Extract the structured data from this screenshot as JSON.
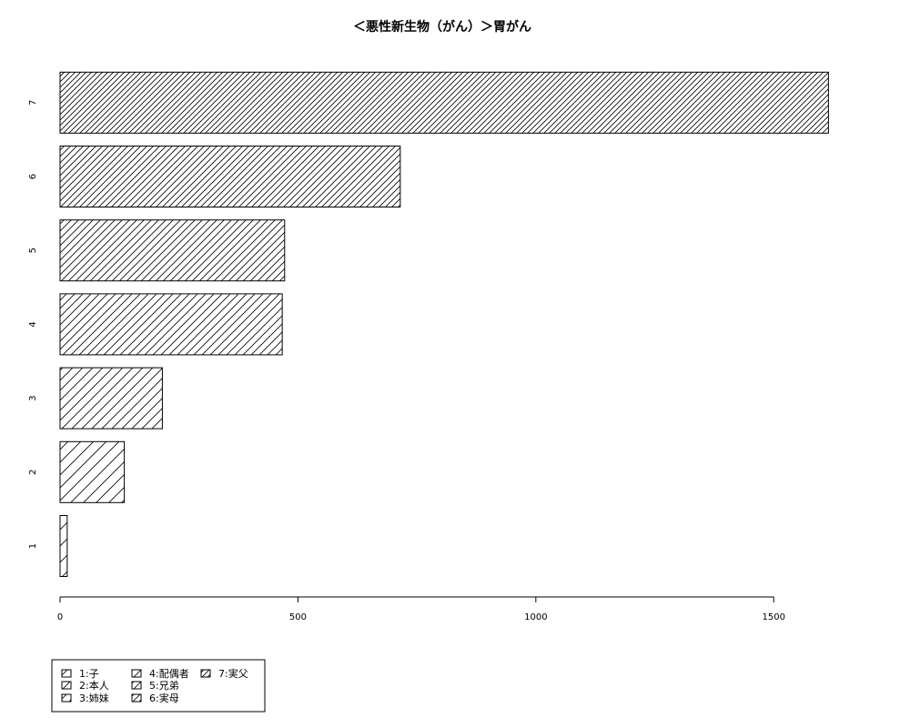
{
  "chart_data": {
    "type": "bar",
    "orientation": "horizontal",
    "title": "＜悪性新生物（がん）＞胃がん",
    "xlabel": "",
    "ylabel": "",
    "categories": [
      "1",
      "2",
      "3",
      "4",
      "5",
      "6",
      "7"
    ],
    "values": [
      15,
      135,
      215,
      467,
      472,
      715,
      1615
    ],
    "xlim": [
      0,
      1620
    ],
    "x_ticks": [
      "0",
      "500",
      "1000",
      "1500"
    ],
    "grid": false,
    "bar_fill": "hatched",
    "legend": {
      "position": "bottom-left",
      "entries": [
        "1:子",
        "2:本人",
        "3:姉妹",
        "4:配偶者",
        "5:兄弟",
        "6:実母",
        "7:実父"
      ]
    }
  }
}
